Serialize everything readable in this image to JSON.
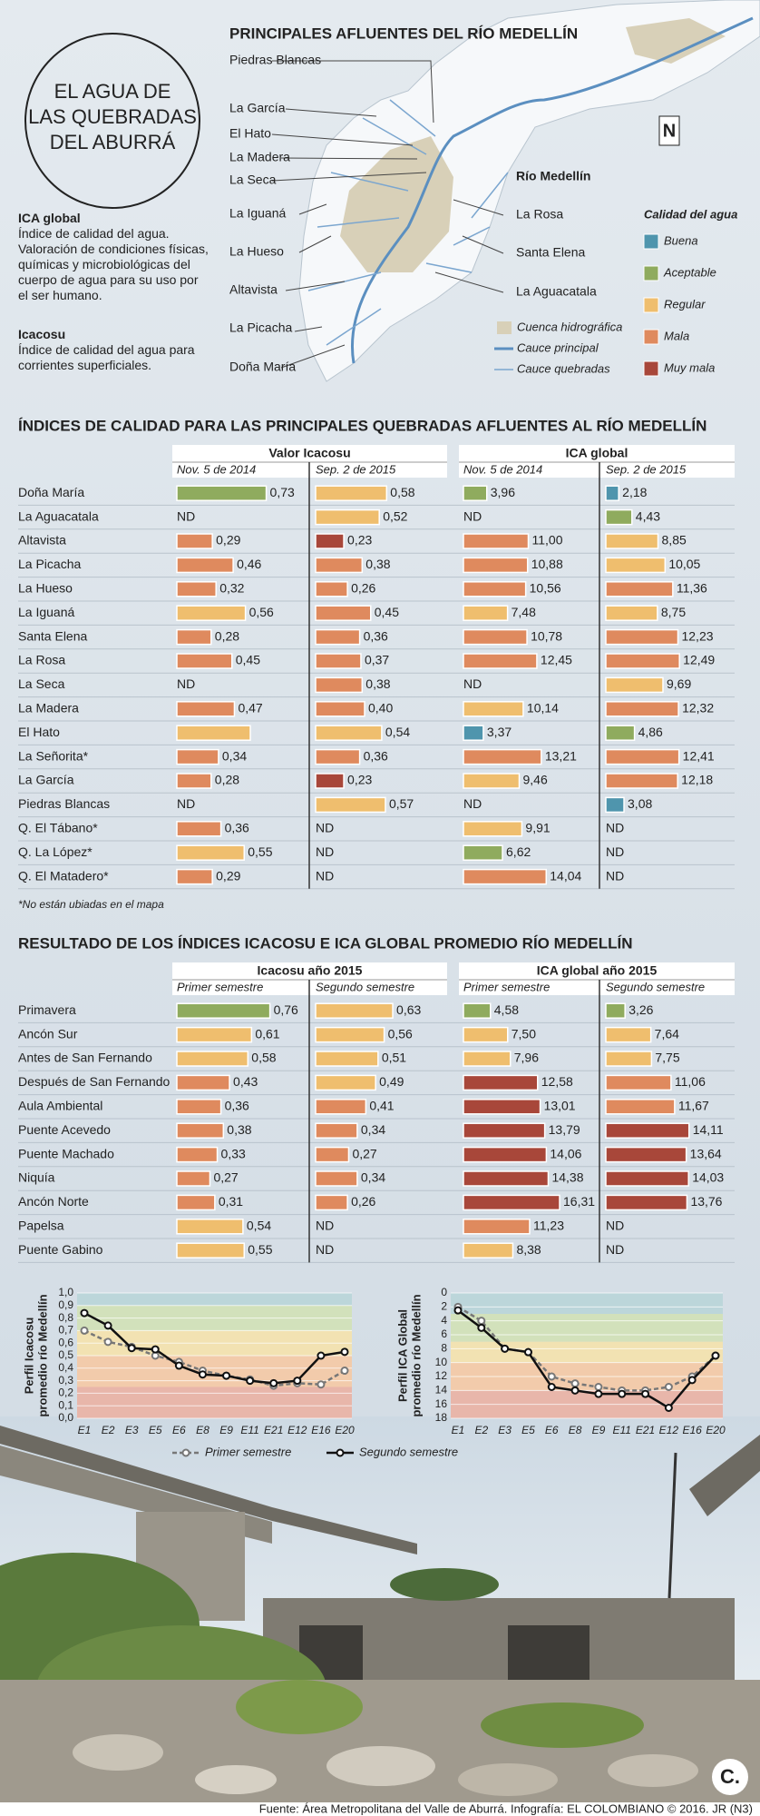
{
  "header": {
    "title_lines": [
      "EL AGUA DE",
      "LAS QUEBRADAS",
      "DEL ABURRÁ"
    ]
  },
  "definitions": [
    {
      "term": "ICA global",
      "text": "Índice de calidad del agua. Valoración de condiciones físicas, químicas y microbiológicas del cuerpo de agua para su uso por el ser humano."
    },
    {
      "term": "Icacosu",
      "text": "Índice de calidad del agua para corrientes superficiales."
    }
  ],
  "map": {
    "title": "PRINCIPALES AFLUENTES DEL RÍO MEDELLÍN",
    "labels_left": [
      "Piedras Blancas",
      "La García",
      "El Hato",
      "La Madera",
      "La Seca",
      "La Iguaná",
      "La Hueso",
      "Altavista",
      "La Picacha",
      "Doña María"
    ],
    "labels_right": [
      "Río Medellín",
      "La Rosa",
      "Santa Elena",
      "La Aguacatala"
    ],
    "legend": [
      "Cuenca hidrográfica",
      "Cauce principal",
      "Cauce quebradas"
    ],
    "north": "N"
  },
  "quality_legend": {
    "title": "Calidad del agua",
    "items": [
      {
        "label": "Buena",
        "color": "#4f95ad"
      },
      {
        "label": "Aceptable",
        "color": "#8fab5e"
      },
      {
        "label": "Regular",
        "color": "#efbe6e"
      },
      {
        "label": "Mala",
        "color": "#df8a5e"
      },
      {
        "label": "Muy mala",
        "color": "#a8473a"
      }
    ]
  },
  "table1": {
    "title": "ÍNDICES DE CALIDAD PARA LAS PRINCIPALES QUEBRADAS AFLUENTES AL RÍO MEDELLÍN",
    "groups": [
      {
        "title": "Valor Icacosu",
        "xlim": [
          0,
          1
        ],
        "columns": [
          "Nov. 5 de 2014",
          "Sep. 2 de 2015"
        ]
      },
      {
        "title": "ICA global",
        "xlim": [
          0,
          20
        ],
        "columns": [
          "Nov. 5 de 2014",
          "Sep. 2 de 2015"
        ]
      }
    ],
    "rows": [
      {
        "name": "Doña María",
        "values": [
          0.73,
          0.58,
          3.96,
          2.18
        ],
        "labels": [
          "0,73",
          "0,58",
          "3,96",
          "2,18"
        ],
        "colors": [
          "#8fab5e",
          "#efbe6e",
          "#8fab5e",
          "#4f95ad"
        ]
      },
      {
        "name": "La Aguacatala",
        "values": [
          null,
          0.52,
          null,
          4.43
        ],
        "labels": [
          "ND",
          "0,52",
          "ND",
          "4,43"
        ],
        "colors": [
          null,
          "#efbe6e",
          null,
          "#8fab5e"
        ]
      },
      {
        "name": "Altavista",
        "values": [
          0.29,
          0.23,
          11.0,
          8.85
        ],
        "labels": [
          "0,29",
          "0,23",
          "11,00",
          "8,85"
        ],
        "colors": [
          "#df8a5e",
          "#a8473a",
          "#df8a5e",
          "#efbe6e"
        ]
      },
      {
        "name": "La Picacha",
        "values": [
          0.46,
          0.38,
          10.88,
          10.05
        ],
        "labels": [
          "0,46",
          "0,38",
          "10,88",
          "10,05"
        ],
        "colors": [
          "#df8a5e",
          "#df8a5e",
          "#df8a5e",
          "#efbe6e"
        ]
      },
      {
        "name": "La Hueso",
        "values": [
          0.32,
          0.26,
          10.56,
          11.36
        ],
        "labels": [
          "0,32",
          "0,26",
          "10,56",
          "11,36"
        ],
        "colors": [
          "#df8a5e",
          "#df8a5e",
          "#df8a5e",
          "#df8a5e"
        ]
      },
      {
        "name": "La Iguaná",
        "values": [
          0.56,
          0.45,
          7.48,
          8.75
        ],
        "labels": [
          "0,56",
          "0,45",
          "7,48",
          "8,75"
        ],
        "colors": [
          "#efbe6e",
          "#df8a5e",
          "#efbe6e",
          "#efbe6e"
        ]
      },
      {
        "name": "Santa Elena",
        "values": [
          0.28,
          0.36,
          10.78,
          12.23
        ],
        "labels": [
          "0,28",
          "0,36",
          "10,78",
          "12,23"
        ],
        "colors": [
          "#df8a5e",
          "#df8a5e",
          "#df8a5e",
          "#df8a5e"
        ]
      },
      {
        "name": "La Rosa",
        "values": [
          0.45,
          0.37,
          12.45,
          12.49
        ],
        "labels": [
          "0,45",
          "0,37",
          "12,45",
          "12,49"
        ],
        "colors": [
          "#df8a5e",
          "#df8a5e",
          "#df8a5e",
          "#df8a5e"
        ]
      },
      {
        "name": "La Seca",
        "values": [
          null,
          0.38,
          null,
          9.69
        ],
        "labels": [
          "ND",
          "0,38",
          "ND",
          "9,69"
        ],
        "colors": [
          null,
          "#df8a5e",
          null,
          "#efbe6e"
        ]
      },
      {
        "name": "La Madera",
        "values": [
          0.47,
          0.4,
          10.14,
          12.32
        ],
        "labels": [
          "0,47",
          "0,40",
          "10,14",
          "12,32"
        ],
        "colors": [
          "#df8a5e",
          "#df8a5e",
          "#efbe6e",
          "#df8a5e"
        ]
      },
      {
        "name": "El Hato",
        "values": [
          0.6,
          0.54,
          3.37,
          4.86
        ],
        "labels": [
          null,
          "0,54",
          "3,37",
          "4,86"
        ],
        "colors": [
          "#efbe6e",
          "#efbe6e",
          "#4f95ad",
          "#8fab5e"
        ]
      },
      {
        "name": "La Señorita*",
        "values": [
          0.34,
          0.36,
          13.21,
          12.41
        ],
        "labels": [
          "0,34",
          "0,36",
          "13,21",
          "12,41"
        ],
        "colors": [
          "#df8a5e",
          "#df8a5e",
          "#df8a5e",
          "#df8a5e"
        ]
      },
      {
        "name": "La García",
        "values": [
          0.28,
          0.23,
          9.46,
          12.18
        ],
        "labels": [
          "0,28",
          "0,23",
          "9,46",
          "12,18"
        ],
        "colors": [
          "#df8a5e",
          "#a8473a",
          "#efbe6e",
          "#df8a5e"
        ]
      },
      {
        "name": "Piedras Blancas",
        "values": [
          null,
          0.57,
          null,
          3.08
        ],
        "labels": [
          "ND",
          "0,57",
          "ND",
          "3,08"
        ],
        "colors": [
          null,
          "#efbe6e",
          null,
          "#4f95ad"
        ]
      },
      {
        "name": "Q. El Tábano*",
        "values": [
          0.36,
          null,
          9.91,
          null
        ],
        "labels": [
          "0,36",
          "ND",
          "9,91",
          "ND"
        ],
        "colors": [
          "#df8a5e",
          null,
          "#efbe6e",
          null
        ]
      },
      {
        "name": "Q. La López*",
        "values": [
          0.55,
          null,
          6.62,
          null
        ],
        "labels": [
          "0,55",
          "ND",
          "6,62",
          "ND"
        ],
        "colors": [
          "#efbe6e",
          null,
          "#8fab5e",
          null
        ]
      },
      {
        "name": "Q. El Matadero*",
        "values": [
          0.29,
          null,
          14.04,
          null
        ],
        "labels": [
          "0,29",
          "ND",
          "14,04",
          "ND"
        ],
        "colors": [
          "#df8a5e",
          null,
          "#df8a5e",
          null
        ]
      }
    ]
  },
  "note": "*No están ubiadas en el mapa",
  "table2": {
    "title": "RESULTADO DE LOS ÍNDICES ICACOSU E ICA GLOBAL PROMEDIO RÍO MEDELLÍN",
    "groups": [
      {
        "title": "Icacosu año 2015",
        "xlim": [
          0,
          1
        ],
        "columns": [
          "Primer semestre",
          "Segundo semestre"
        ]
      },
      {
        "title": "ICA global año 2015",
        "xlim": [
          0,
          20
        ],
        "columns": [
          "Primer semestre",
          "Segundo semestre"
        ]
      }
    ],
    "rows": [
      {
        "name": "Primavera",
        "values": [
          0.76,
          0.63,
          4.58,
          3.26
        ],
        "labels": [
          "0,76",
          "0,63",
          "4,58",
          "3,26"
        ],
        "colors": [
          "#8fab5e",
          "#efbe6e",
          "#8fab5e",
          "#8fab5e"
        ]
      },
      {
        "name": "Ancón Sur",
        "values": [
          0.61,
          0.56,
          7.5,
          7.64
        ],
        "labels": [
          "0,61",
          "0,56",
          "7,50",
          "7,64"
        ],
        "colors": [
          "#efbe6e",
          "#efbe6e",
          "#efbe6e",
          "#efbe6e"
        ]
      },
      {
        "name": "Antes de San Fernando",
        "values": [
          0.58,
          0.51,
          7.96,
          7.75
        ],
        "labels": [
          "0,58",
          "0,51",
          "7,96",
          "7,75"
        ],
        "colors": [
          "#efbe6e",
          "#efbe6e",
          "#efbe6e",
          "#efbe6e"
        ]
      },
      {
        "name": "Después de San Fernando",
        "values": [
          0.43,
          0.49,
          12.58,
          11.06
        ],
        "labels": [
          "0,43",
          "0,49",
          "12,58",
          "11,06"
        ],
        "colors": [
          "#df8a5e",
          "#efbe6e",
          "#a8473a",
          "#df8a5e"
        ]
      },
      {
        "name": "Aula Ambiental",
        "values": [
          0.36,
          0.41,
          13.01,
          11.67
        ],
        "labels": [
          "0,36",
          "0,41",
          "13,01",
          "11,67"
        ],
        "colors": [
          "#df8a5e",
          "#df8a5e",
          "#a8473a",
          "#df8a5e"
        ]
      },
      {
        "name": "Puente Acevedo",
        "values": [
          0.38,
          0.34,
          13.79,
          14.11
        ],
        "labels": [
          "0,38",
          "0,34",
          "13,79",
          "14,11"
        ],
        "colors": [
          "#df8a5e",
          "#df8a5e",
          "#a8473a",
          "#a8473a"
        ]
      },
      {
        "name": "Puente Machado",
        "values": [
          0.33,
          0.27,
          14.06,
          13.64
        ],
        "labels": [
          "0,33",
          "0,27",
          "14,06",
          "13,64"
        ],
        "colors": [
          "#df8a5e",
          "#df8a5e",
          "#a8473a",
          "#a8473a"
        ]
      },
      {
        "name": "Niquía",
        "values": [
          0.27,
          0.34,
          14.38,
          14.03
        ],
        "labels": [
          "0,27",
          "0,34",
          "14,38",
          "14,03"
        ],
        "colors": [
          "#df8a5e",
          "#df8a5e",
          "#a8473a",
          "#a8473a"
        ]
      },
      {
        "name": "Ancón Norte",
        "values": [
          0.31,
          0.26,
          16.31,
          13.76
        ],
        "labels": [
          "0,31",
          "0,26",
          "16,31",
          "13,76"
        ],
        "colors": [
          "#df8a5e",
          "#df8a5e",
          "#a8473a",
          "#a8473a"
        ]
      },
      {
        "name": "Papelsa",
        "values": [
          0.54,
          null,
          11.23,
          null
        ],
        "labels": [
          "0,54",
          "ND",
          "11,23",
          "ND"
        ],
        "colors": [
          "#efbe6e",
          null,
          "#df8a5e",
          null
        ]
      },
      {
        "name": "Puente Gabino",
        "values": [
          0.55,
          null,
          8.38,
          null
        ],
        "labels": [
          "0,55",
          "ND",
          "8,38",
          "ND"
        ],
        "colors": [
          "#efbe6e",
          null,
          "#efbe6e",
          null
        ]
      }
    ]
  },
  "chart_data": [
    {
      "type": "line",
      "y_label_lines": [
        "Perfil Icacosu",
        "promedio río Medellín"
      ],
      "categories": [
        "E1",
        "E2",
        "E3",
        "E5",
        "E6",
        "E8",
        "E9",
        "E11",
        "E21",
        "E12",
        "E16",
        "E20"
      ],
      "ylim": [
        0,
        1
      ],
      "yticks": [
        {
          "value": 0,
          "label": "0,0"
        },
        {
          "value": 0.1,
          "label": "0,1"
        },
        {
          "value": 0.2,
          "label": "0,2"
        },
        {
          "value": 0.3,
          "label": "0,3"
        },
        {
          "value": 0.4,
          "label": "0,4"
        },
        {
          "value": 0.5,
          "label": "0,5"
        },
        {
          "value": 0.6,
          "label": "0,6"
        },
        {
          "value": 0.7,
          "label": "0,7"
        },
        {
          "value": 0.8,
          "label": "0,8"
        },
        {
          "value": 0.9,
          "label": "0,9"
        },
        {
          "value": 1,
          "label": "1,0"
        }
      ],
      "bands": [
        {
          "from": 0.9,
          "to": 1,
          "color": "#bcd6da"
        },
        {
          "from": 0.7,
          "to": 0.9,
          "color": "#d2e1bb"
        },
        {
          "from": 0.5,
          "to": 0.7,
          "color": "#f2e2b2"
        },
        {
          "from": 0.25,
          "to": 0.5,
          "color": "#f2cbab"
        },
        {
          "from": 0,
          "to": 0.25,
          "color": "#e8b6aa"
        }
      ],
      "series": [
        {
          "name": "Primer semestre",
          "color": "#777777",
          "dashed": true,
          "values": [
            0.7,
            0.61,
            0.57,
            0.5,
            0.45,
            0.38,
            0.34,
            0.31,
            0.26,
            0.28,
            0.27,
            0.38
          ]
        },
        {
          "name": "Segundo semestre",
          "color": "#111111",
          "dashed": false,
          "values": [
            0.84,
            0.74,
            0.56,
            0.55,
            0.42,
            0.35,
            0.34,
            0.3,
            0.28,
            0.3,
            0.5,
            0.53
          ]
        }
      ]
    },
    {
      "type": "line",
      "y_label_lines": [
        "Perfil ICA Global",
        "promedio río Medellín"
      ],
      "categories": [
        "E1",
        "E2",
        "E3",
        "E5",
        "E6",
        "E8",
        "E9",
        "E11",
        "E21",
        "E12",
        "E16",
        "E20"
      ],
      "ylim": [
        18,
        0
      ],
      "yticks": [
        0,
        2,
        4,
        6,
        8,
        10,
        12,
        14,
        16,
        18
      ],
      "bands": [
        {
          "from": 0,
          "to": 3,
          "color": "#bcd6da"
        },
        {
          "from": 3,
          "to": 7,
          "color": "#d2e1bb"
        },
        {
          "from": 7,
          "to": 10,
          "color": "#f2e2b2"
        },
        {
          "from": 10,
          "to": 14,
          "color": "#f2cbab"
        },
        {
          "from": 14,
          "to": 18,
          "color": "#e8b6aa"
        }
      ],
      "series": [
        {
          "color": "#777777",
          "dashed": true,
          "values": [
            2,
            4,
            8,
            8.5,
            12,
            13,
            13.5,
            14,
            14,
            13.5,
            12,
            9
          ]
        },
        {
          "color": "#111111",
          "dashed": false,
          "values": [
            2.5,
            5,
            8,
            8.5,
            13.5,
            14,
            14.5,
            14.5,
            14.5,
            16.5,
            12.5,
            9
          ]
        }
      ]
    }
  ],
  "logo": "C.",
  "footer": "Fuente: Área Metropolitana del Valle de Aburrá. Infografía: EL COLOMBIANO © 2016. JR (N3)"
}
